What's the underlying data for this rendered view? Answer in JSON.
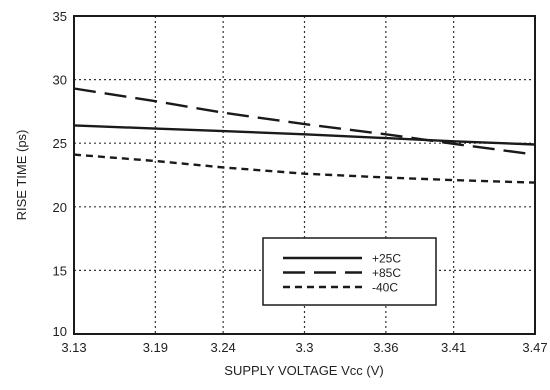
{
  "chart_data": {
    "type": "line",
    "title": "",
    "xlabel": "SUPPLY VOLTAGE Vcc (V)",
    "ylabel": "RISE TIME (ps)",
    "xlim": [
      3.13,
      3.47
    ],
    "ylim": [
      10,
      35
    ],
    "x_ticks": [
      3.13,
      3.19,
      3.24,
      3.3,
      3.36,
      3.41,
      3.47
    ],
    "x_tick_labels": [
      "3.13",
      "3.19",
      "3.24",
      "3.3",
      "3.36",
      "3.41",
      "3.47"
    ],
    "y_ticks": [
      10,
      15,
      20,
      25,
      30,
      35
    ],
    "y_tick_labels": [
      "10",
      "15",
      "20",
      "25",
      "30",
      "35"
    ],
    "grid": true,
    "legend_position": "bottom-center",
    "series": [
      {
        "name": "+25C",
        "line_style": "solid",
        "x": [
          3.13,
          3.19,
          3.24,
          3.3,
          3.36,
          3.41,
          3.47
        ],
        "y": [
          26.4,
          26.15,
          25.95,
          25.7,
          25.4,
          25.15,
          24.9
        ]
      },
      {
        "name": "+85C",
        "line_style": "long-dash",
        "x": [
          3.13,
          3.19,
          3.24,
          3.3,
          3.36,
          3.41,
          3.47
        ],
        "y": [
          29.3,
          28.3,
          27.4,
          26.5,
          25.7,
          24.95,
          24.1
        ]
      },
      {
        "name": "-40C",
        "line_style": "short-dash",
        "x": [
          3.13,
          3.19,
          3.24,
          3.3,
          3.36,
          3.41,
          3.47
        ],
        "y": [
          24.1,
          23.6,
          23.1,
          22.6,
          22.3,
          22.1,
          21.9
        ]
      }
    ],
    "colors": {
      "lines": "#1a1a1a",
      "grid": "#333333",
      "frame": "#1a1a1a"
    }
  }
}
